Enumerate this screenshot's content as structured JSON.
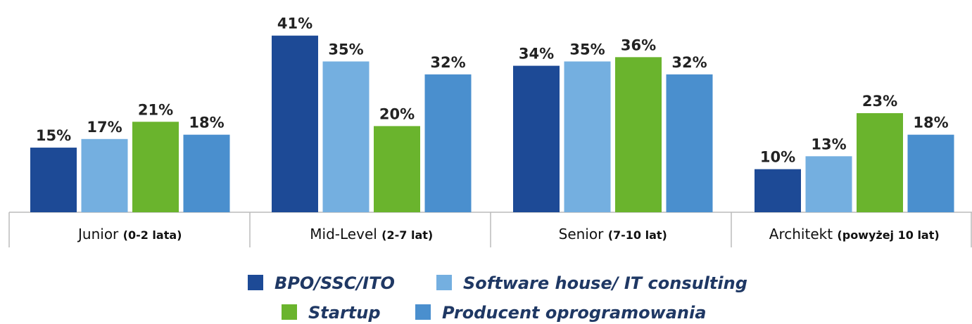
{
  "chart_data": {
    "type": "bar",
    "categories": [
      "Junior",
      "Mid-Level",
      "Senior",
      "Architekt"
    ],
    "category_ranges": [
      "(0-2 lata)",
      "(2-7 lat)",
      "(7-10 lat)",
      "(powyżej 10 lat)"
    ],
    "series": [
      {
        "name": "BPO/SSC/ITO",
        "color": "#1d4a96",
        "values": [
          15,
          41,
          34,
          10
        ],
        "value_labels": [
          "15%",
          "41%",
          "34%",
          "10%"
        ]
      },
      {
        "name": "Software house/ IT consulting",
        "color": "#74afe0",
        "values": [
          17,
          35,
          35,
          13
        ],
        "value_labels": [
          "17%",
          "35%",
          "35%",
          "13%"
        ]
      },
      {
        "name": "Startup",
        "color": "#6ab42d",
        "values": [
          21,
          20,
          36,
          23
        ],
        "value_labels": [
          "21%",
          "20%",
          "36%",
          "23%"
        ]
      },
      {
        "name": "Producent oprogramowania",
        "color": "#4a8fce",
        "values": [
          18,
          32,
          32,
          18
        ],
        "value_labels": [
          "18%",
          "32%",
          "32%",
          "18%"
        ]
      }
    ]
  }
}
